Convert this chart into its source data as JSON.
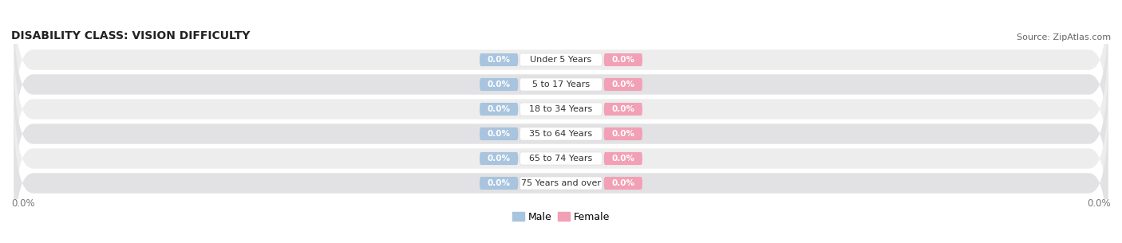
{
  "title": "DISABILITY CLASS: VISION DIFFICULTY",
  "source": "Source: ZipAtlas.com",
  "categories": [
    "Under 5 Years",
    "5 to 17 Years",
    "18 to 34 Years",
    "35 to 64 Years",
    "65 to 74 Years",
    "75 Years and over"
  ],
  "male_values": [
    0.0,
    0.0,
    0.0,
    0.0,
    0.0,
    0.0
  ],
  "female_values": [
    0.0,
    0.0,
    0.0,
    0.0,
    0.0,
    0.0
  ],
  "male_color": "#a8c4de",
  "female_color": "#f2a0b5",
  "male_label": "Male",
  "female_label": "Female",
  "row_bg_odd": "#ededee",
  "row_bg_even": "#e2e2e4",
  "title_fontsize": 10,
  "source_fontsize": 8,
  "background_color": "#ffffff",
  "axis_label_color": "#777777",
  "category_text_color": "#333333",
  "value_text_color": "#ffffff"
}
